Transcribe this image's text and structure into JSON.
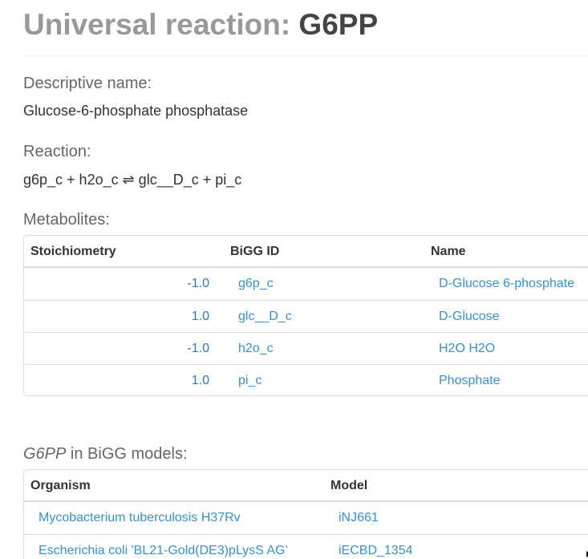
{
  "title": {
    "prefix": "Universal reaction:",
    "reaction_id": "G6PP"
  },
  "descriptive_name": {
    "label": "Descriptive name:",
    "value": "Glucose-6-phosphate phosphatase"
  },
  "reaction": {
    "label": "Reaction:",
    "equation": "g6p_c + h2o_c ⇌ glc__D_c + pi_c"
  },
  "metabolites": {
    "label": "Metabolites:",
    "columns": [
      "Stoichiometry",
      "BiGG ID",
      "Name"
    ],
    "rows": [
      {
        "stoichiometry": "-1.0",
        "bigg_id": "g6p_c",
        "name": "D-Glucose 6-phosphate"
      },
      {
        "stoichiometry": "1.0",
        "bigg_id": "glc__D_c",
        "name": "D-Glucose"
      },
      {
        "stoichiometry": "-1.0",
        "bigg_id": "h2o_c",
        "name": "H2O H2O"
      },
      {
        "stoichiometry": "1.0",
        "bigg_id": "pi_c",
        "name": "Phosphate"
      }
    ]
  },
  "models_section": {
    "label_italic": "G6PP",
    "label_rest": " in BiGG models:",
    "columns": [
      "Organism",
      "Model"
    ],
    "rows": [
      {
        "organism": "Mycobacterium tuberculosis H37Rv",
        "model": "iNJ661"
      },
      {
        "organism": "Escherichia coli 'BL21-Gold(DE3)pLysS AG'",
        "model": "iECBD_1354"
      }
    ]
  },
  "colors": {
    "link": "#3a8fd0",
    "number": "#2a7cbb",
    "muted": "#999999"
  }
}
